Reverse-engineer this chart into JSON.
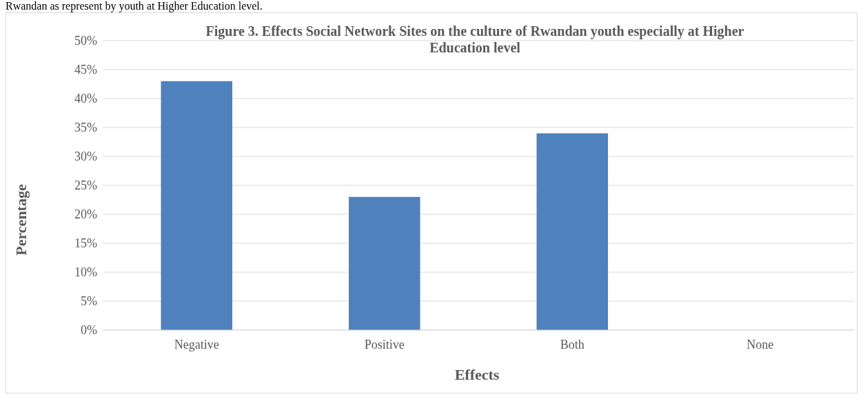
{
  "chart_data": {
    "type": "bar",
    "title": "Figure 3. Effects Social Network Sites on the culture of Rwandan youth especially at Higher Education level",
    "xlabel": "Effects",
    "ylabel": "Percentage",
    "annotations": [
      "Rwandan as represent by youth at Higher Education level."
    ],
    "categories": [
      "Negative",
      "Positive",
      "Both",
      "None"
    ],
    "values": [
      43,
      23,
      34,
      0
    ],
    "color": "#4f81bd",
    "ylim": [
      0,
      50
    ],
    "yticks": [
      {
        "value": 0,
        "label": "0%"
      },
      {
        "value": 5,
        "label": "5%"
      },
      {
        "value": 10,
        "label": "10%"
      },
      {
        "value": 15,
        "label": "15%"
      },
      {
        "value": 20,
        "label": "20%"
      },
      {
        "value": 25,
        "label": "25%"
      },
      {
        "value": 30,
        "label": "30%"
      },
      {
        "value": 35,
        "label": "35%"
      },
      {
        "value": 40,
        "label": "40%"
      },
      {
        "value": 45,
        "label": "45%"
      },
      {
        "value": 50,
        "label": "50%"
      }
    ],
    "grid": "y",
    "legend": false
  }
}
